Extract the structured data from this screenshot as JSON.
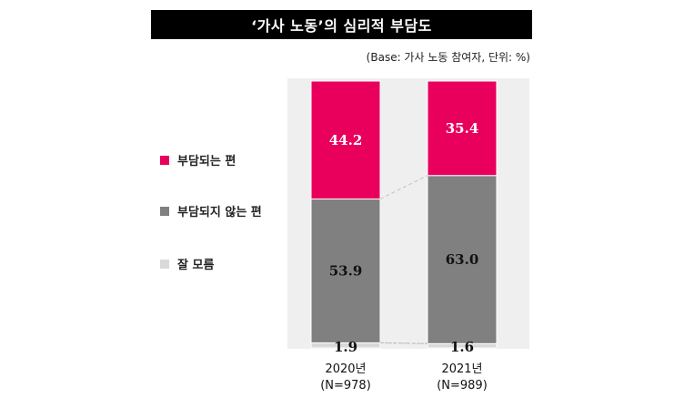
{
  "title": "‘가사 노동’의 심리적 부담도",
  "subtitle": "(Base: 가사 노동 참여자, 단위: %)",
  "colors": {
    "burden": "#E8005C",
    "no_burden": "#808080",
    "unknown": "#D9D9D9",
    "panel": "#EFEFEF"
  },
  "chart_data": {
    "type": "bar",
    "stacked": true,
    "orientation": "vertical",
    "categories": [
      {
        "year": "2020년",
        "n": "(N=978)"
      },
      {
        "year": "2021년",
        "n": "(N=989)"
      }
    ],
    "series": [
      {
        "name": "부담되는 편",
        "color_key": "burden",
        "values": [
          44.2,
          35.4
        ],
        "labels": [
          "44.2",
          "35.4"
        ]
      },
      {
        "name": "부담되지 않는 편",
        "color_key": "no_burden",
        "values": [
          53.9,
          63.0
        ],
        "labels": [
          "53.9",
          "63.0"
        ]
      },
      {
        "name": "잘 모름",
        "color_key": "unknown",
        "values": [
          1.9,
          1.6
        ],
        "labels": [
          "1.9",
          "1.6"
        ]
      }
    ],
    "ylim": [
      0,
      100
    ],
    "legend_position": "left",
    "grid": false,
    "unit": "%"
  }
}
